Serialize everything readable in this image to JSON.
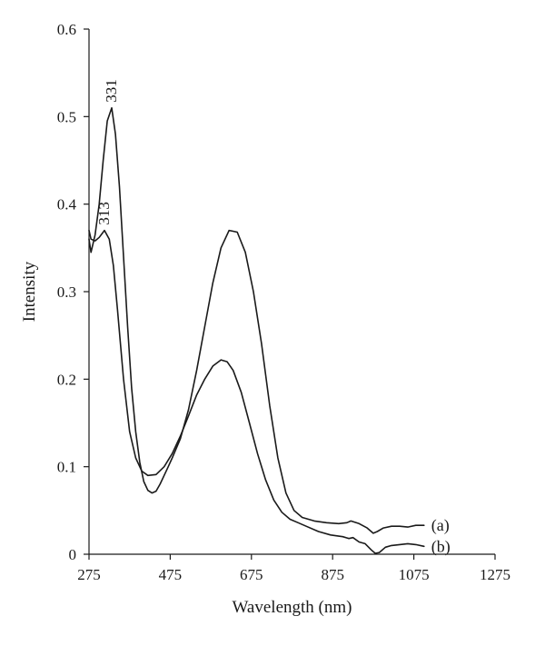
{
  "chart_data": {
    "type": "line",
    "title": "",
    "xlabel": "Wavelength (nm)",
    "ylabel": "Intensity",
    "xlim": [
      275,
      1275
    ],
    "ylim": [
      0,
      0.6
    ],
    "x_ticks": [
      "275",
      "475",
      "675",
      "875",
      "1075",
      "1275"
    ],
    "y_ticks": [
      "0",
      "0.1",
      "0.2",
      "0.3",
      "0.4",
      "0.5",
      "0.6"
    ],
    "grid": false,
    "legend": "none",
    "line_color": "#1a1a1a",
    "series": [
      {
        "name": "(a)",
        "x": [
          275,
          280,
          290,
          300,
          310,
          320,
          331,
          340,
          350,
          360,
          370,
          380,
          390,
          400,
          410,
          420,
          430,
          440,
          450,
          460,
          470,
          480,
          500,
          520,
          540,
          560,
          580,
          600,
          620,
          640,
          660,
          680,
          700,
          720,
          740,
          760,
          780,
          800,
          830,
          860,
          890,
          910,
          920,
          940,
          960,
          975,
          985,
          1000,
          1020,
          1040,
          1060,
          1080,
          1100
        ],
        "y": [
          0.36,
          0.345,
          0.365,
          0.4,
          0.45,
          0.495,
          0.51,
          0.48,
          0.42,
          0.34,
          0.26,
          0.19,
          0.14,
          0.105,
          0.083,
          0.073,
          0.07,
          0.072,
          0.08,
          0.09,
          0.1,
          0.11,
          0.132,
          0.165,
          0.21,
          0.26,
          0.31,
          0.35,
          0.37,
          0.368,
          0.345,
          0.3,
          0.24,
          0.17,
          0.11,
          0.07,
          0.05,
          0.042,
          0.038,
          0.036,
          0.035,
          0.036,
          0.038,
          0.035,
          0.03,
          0.024,
          0.026,
          0.03,
          0.032,
          0.032,
          0.031,
          0.033,
          0.033
        ]
      },
      {
        "name": "(b)",
        "x": [
          275,
          280,
          290,
          300,
          313,
          325,
          335,
          345,
          360,
          375,
          390,
          405,
          420,
          440,
          460,
          480,
          500,
          520,
          540,
          560,
          580,
          600,
          615,
          630,
          650,
          670,
          690,
          710,
          730,
          750,
          770,
          790,
          810,
          840,
          870,
          900,
          915,
          925,
          940,
          955,
          970,
          980,
          990,
          1005,
          1020,
          1040,
          1060,
          1080,
          1100
        ],
        "y": [
          0.37,
          0.36,
          0.358,
          0.362,
          0.37,
          0.36,
          0.33,
          0.28,
          0.2,
          0.14,
          0.11,
          0.095,
          0.09,
          0.091,
          0.1,
          0.115,
          0.135,
          0.158,
          0.182,
          0.2,
          0.215,
          0.222,
          0.22,
          0.21,
          0.185,
          0.15,
          0.115,
          0.085,
          0.062,
          0.048,
          0.04,
          0.036,
          0.032,
          0.026,
          0.022,
          0.02,
          0.018,
          0.019,
          0.014,
          0.012,
          0.005,
          0.001,
          0.002,
          0.008,
          0.01,
          0.011,
          0.012,
          0.011,
          0.009
        ]
      }
    ],
    "annotations": [
      {
        "text": "331",
        "x": 331,
        "y": 0.51,
        "rotate": -90
      },
      {
        "text": "313",
        "x": 313,
        "y": 0.37,
        "rotate": -90
      }
    ]
  }
}
